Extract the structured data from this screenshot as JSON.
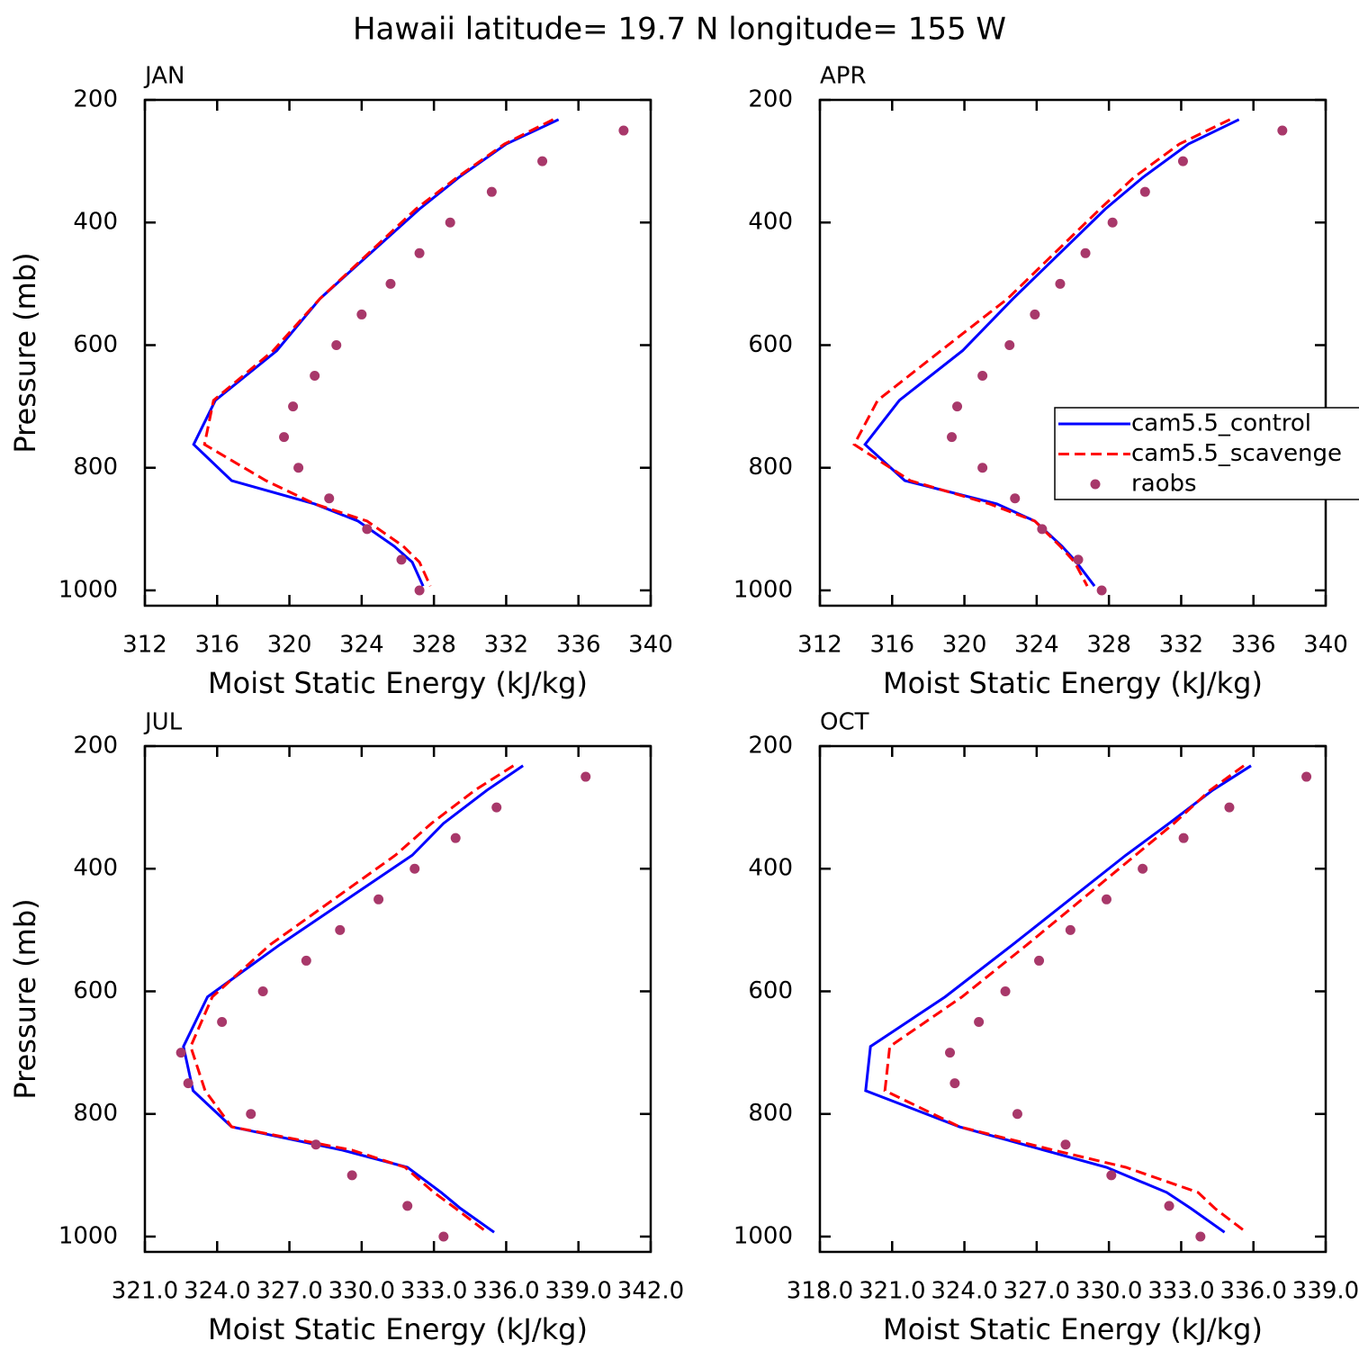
{
  "title": "Hawaii  latitude= 19.7 N longitude= 155 W",
  "chart_data": [
    {
      "type": "line",
      "title": "JAN",
      "xlabel": "Moist Static Energy (kJ/kg)",
      "ylabel": "Pressure (mb)",
      "xlim": [
        312,
        340
      ],
      "xticks": [
        312,
        316,
        320,
        324,
        328,
        332,
        336,
        340
      ],
      "ylim": [
        1025,
        200
      ],
      "yticks": [
        200,
        400,
        600,
        800,
        1000
      ],
      "series": [
        {
          "name": "cam5.5_control",
          "color": "#0000ff",
          "style": "solid",
          "levels": [
            232,
            272,
            326,
            378,
            524,
            609,
            690,
            762,
            821,
            859,
            887,
            928,
            954,
            993
          ],
          "values": [
            334.9,
            332.0,
            329.4,
            327.2,
            321.7,
            319.3,
            315.9,
            314.7,
            316.8,
            321.4,
            323.8,
            325.8,
            326.8,
            327.4
          ]
        },
        {
          "name": "cam5.5_scavenge",
          "color": "#ff0000",
          "style": "dashed",
          "levels": [
            232,
            272,
            326,
            378,
            524,
            609,
            690,
            762,
            821,
            859,
            887,
            928,
            954,
            993
          ],
          "values": [
            334.6,
            331.9,
            329.3,
            327.0,
            321.7,
            319.1,
            315.8,
            315.3,
            318.7,
            321.4,
            324.3,
            326.3,
            327.2,
            327.8
          ]
        },
        {
          "name": "raobs",
          "color": "#a8386a",
          "style": "markers",
          "levels": [
            250,
            300,
            350,
            400,
            450,
            500,
            550,
            600,
            650,
            700,
            750,
            800,
            850,
            900,
            950,
            1000
          ],
          "values": [
            338.5,
            334.0,
            331.2,
            328.9,
            327.2,
            325.6,
            324.0,
            322.6,
            321.4,
            320.2,
            319.7,
            320.5,
            322.2,
            324.3,
            326.2,
            327.2
          ]
        }
      ]
    },
    {
      "type": "line",
      "title": "APR",
      "xlabel": "Moist Static Energy (kJ/kg)",
      "legend": "right",
      "xlim": [
        312,
        340
      ],
      "xticks": [
        312,
        316,
        320,
        324,
        328,
        332,
        336,
        340
      ],
      "ylim": [
        1025,
        200
      ],
      "yticks": [
        200,
        400,
        600,
        800,
        1000
      ],
      "series": [
        {
          "name": "cam5.5_control",
          "color": "#0000ff",
          "style": "solid",
          "levels": [
            232,
            272,
            326,
            378,
            524,
            609,
            690,
            762,
            821,
            859,
            887,
            928,
            954,
            993
          ],
          "values": [
            335.2,
            332.4,
            329.9,
            327.8,
            322.7,
            319.9,
            316.4,
            314.5,
            316.7,
            321.8,
            323.9,
            325.4,
            326.2,
            327.2
          ]
        },
        {
          "name": "cam5.5_scavenge",
          "color": "#ff0000",
          "style": "dashed",
          "levels": [
            232,
            272,
            326,
            378,
            524,
            609,
            690,
            762,
            821,
            859,
            887,
            928,
            954,
            993
          ],
          "values": [
            334.7,
            331.9,
            329.4,
            327.5,
            322.4,
            318.7,
            315.2,
            313.9,
            317.0,
            321.4,
            323.9,
            325.3,
            326.1,
            326.8
          ]
        },
        {
          "name": "raobs",
          "color": "#a8386a",
          "style": "markers",
          "levels": [
            250,
            300,
            350,
            400,
            450,
            500,
            550,
            600,
            650,
            700,
            750,
            800,
            850,
            900,
            950,
            1000
          ],
          "values": [
            337.6,
            332.1,
            330.0,
            328.2,
            326.7,
            325.3,
            323.9,
            322.5,
            321.0,
            319.6,
            319.3,
            321.0,
            322.8,
            324.3,
            326.3,
            327.6
          ]
        }
      ]
    },
    {
      "type": "line",
      "title": "JUL",
      "xlabel": "Moist Static Energy (kJ/kg)",
      "ylabel": "Pressure (mb)",
      "xlim": [
        321,
        342
      ],
      "xticks": [
        {
          "value": 321,
          "label": "321.0"
        },
        {
          "value": 324,
          "label": "324.0"
        },
        {
          "value": 327,
          "label": "327.0"
        },
        {
          "value": 330,
          "label": "330.0"
        },
        {
          "value": 333,
          "label": "333.0"
        },
        {
          "value": 336,
          "label": "336.0"
        },
        {
          "value": 339,
          "label": "339.0"
        },
        {
          "value": 342,
          "label": "342.0"
        }
      ],
      "ylim": [
        1025,
        200
      ],
      "yticks": [
        200,
        400,
        600,
        800,
        1000
      ],
      "series": [
        {
          "name": "cam5.5_control",
          "color": "#0000ff",
          "style": "solid",
          "levels": [
            232,
            272,
            326,
            378,
            524,
            609,
            690,
            762,
            821,
            859,
            887,
            928,
            954,
            993
          ],
          "values": [
            336.7,
            335.2,
            333.4,
            332.1,
            326.6,
            323.6,
            322.6,
            323.0,
            324.6,
            329.2,
            331.9,
            333.3,
            334.1,
            335.5
          ]
        },
        {
          "name": "cam5.5_scavenge",
          "color": "#ff0000",
          "style": "dashed",
          "levels": [
            232,
            272,
            326,
            378,
            524,
            609,
            690,
            762,
            821,
            859,
            887,
            928,
            954,
            993
          ],
          "values": [
            336.3,
            334.7,
            332.9,
            331.4,
            326.2,
            323.8,
            322.9,
            323.5,
            324.6,
            329.6,
            331.8,
            333.0,
            333.9,
            335.2
          ]
        },
        {
          "name": "raobs",
          "color": "#a8386a",
          "style": "markers",
          "levels": [
            250,
            300,
            350,
            400,
            450,
            500,
            550,
            600,
            650,
            700,
            750,
            800,
            850,
            900,
            950,
            1000
          ],
          "values": [
            339.3,
            335.6,
            333.9,
            332.2,
            330.7,
            329.1,
            327.7,
            325.9,
            324.2,
            322.5,
            322.8,
            325.4,
            328.1,
            329.6,
            331.9,
            333.4
          ]
        }
      ]
    },
    {
      "type": "line",
      "title": "OCT",
      "xlabel": "Moist Static Energy (kJ/kg)",
      "xlim": [
        318,
        339
      ],
      "xticks": [
        {
          "value": 318,
          "label": "318.0"
        },
        {
          "value": 321,
          "label": "321.0"
        },
        {
          "value": 324,
          "label": "324.0"
        },
        {
          "value": 327,
          "label": "327.0"
        },
        {
          "value": 330,
          "label": "330.0"
        },
        {
          "value": 333,
          "label": "333.0"
        },
        {
          "value": 336,
          "label": "336.0"
        },
        {
          "value": 339,
          "label": "339.0"
        }
      ],
      "ylim": [
        1025,
        200
      ],
      "yticks": [
        200,
        400,
        600,
        800,
        1000
      ],
      "series": [
        {
          "name": "cam5.5_control",
          "color": "#0000ff",
          "style": "solid",
          "levels": [
            232,
            272,
            326,
            378,
            524,
            609,
            690,
            762,
            821,
            859,
            887,
            928,
            954,
            993
          ],
          "values": [
            335.9,
            334.3,
            332.5,
            330.7,
            326.0,
            323.2,
            320.1,
            319.9,
            323.8,
            327.3,
            329.9,
            332.4,
            333.4,
            334.8
          ]
        },
        {
          "name": "cam5.5_scavenge",
          "color": "#ff0000",
          "style": "dashed",
          "levels": [
            232,
            272,
            326,
            378,
            524,
            609,
            690,
            762,
            821,
            859,
            887,
            928,
            954,
            993
          ],
          "values": [
            335.6,
            334.2,
            332.7,
            331.1,
            326.6,
            323.9,
            320.9,
            320.7,
            323.8,
            327.7,
            330.7,
            333.7,
            334.4,
            335.7
          ]
        },
        {
          "name": "raobs",
          "color": "#a8386a",
          "style": "markers",
          "levels": [
            250,
            300,
            350,
            400,
            450,
            500,
            550,
            600,
            650,
            700,
            750,
            800,
            850,
            900,
            950,
            1000
          ],
          "values": [
            338.2,
            335.0,
            333.1,
            331.4,
            329.9,
            328.4,
            327.1,
            325.7,
            324.6,
            323.4,
            323.6,
            326.2,
            328.2,
            330.1,
            332.5,
            333.8
          ]
        }
      ]
    }
  ]
}
